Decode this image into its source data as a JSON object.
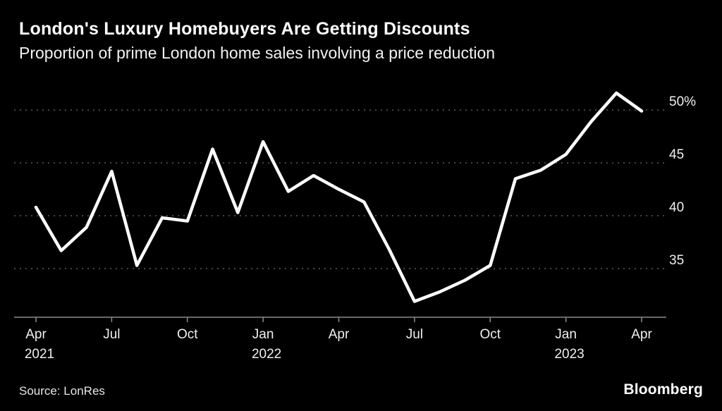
{
  "header": {
    "title": "London's Luxury Homebuyers Are Getting Discounts",
    "subtitle": "Proportion of prime London home sales involving a price reduction"
  },
  "footer": {
    "source": "Source: LonRes",
    "brand": "Bloomberg"
  },
  "chart_data": {
    "type": "line",
    "title": "London's Luxury Homebuyers Are Getting Discounts",
    "subtitle": "Proportion of prime London home sales involving a price reduction",
    "xlabel": "",
    "ylabel": "",
    "x": [
      "Apr 2021",
      "May 2021",
      "Jun 2021",
      "Jul 2021",
      "Aug 2021",
      "Sep 2021",
      "Oct 2021",
      "Nov 2021",
      "Dec 2021",
      "Jan 2022",
      "Feb 2022",
      "Mar 2022",
      "Apr 2022",
      "May 2022",
      "Jun 2022",
      "Jul 2022",
      "Aug 2022",
      "Sep 2022",
      "Oct 2022",
      "Nov 2022",
      "Dec 2022",
      "Jan 2023",
      "Feb 2023",
      "Mar 2023",
      "Apr 2023"
    ],
    "values": [
      40.8,
      36.7,
      38.9,
      44.2,
      35.3,
      39.8,
      39.5,
      46.3,
      40.3,
      47.0,
      42.3,
      43.8,
      42.5,
      41.3,
      36.8,
      31.9,
      32.8,
      33.9,
      35.3,
      43.5,
      44.3,
      45.8,
      48.9,
      51.6,
      49.9
    ],
    "x_ticks": [
      {
        "month_index": 0,
        "label": "Apr",
        "year": "2021"
      },
      {
        "month_index": 3,
        "label": "Jul",
        "year": ""
      },
      {
        "month_index": 6,
        "label": "Oct",
        "year": ""
      },
      {
        "month_index": 9,
        "label": "Jan",
        "year": "2022"
      },
      {
        "month_index": 12,
        "label": "Apr",
        "year": ""
      },
      {
        "month_index": 15,
        "label": "Jul",
        "year": ""
      },
      {
        "month_index": 18,
        "label": "Oct",
        "year": ""
      },
      {
        "month_index": 21,
        "label": "Jan",
        "year": "2023"
      },
      {
        "month_index": 24,
        "label": "Apr",
        "year": ""
      }
    ],
    "y_ticks": [
      {
        "value": 50,
        "label": "50%"
      },
      {
        "value": 45,
        "label": "45"
      },
      {
        "value": 40,
        "label": "40"
      },
      {
        "value": 35,
        "label": "35"
      }
    ],
    "ylim": [
      30.4,
      52.4
    ],
    "grid": true,
    "legend_position": "none",
    "colors": {
      "background": "#000000",
      "line": "#ffffff",
      "grid": "#5c5c5c",
      "axis": "#8a8a8a",
      "tick_text": "#f0f0f0"
    }
  }
}
